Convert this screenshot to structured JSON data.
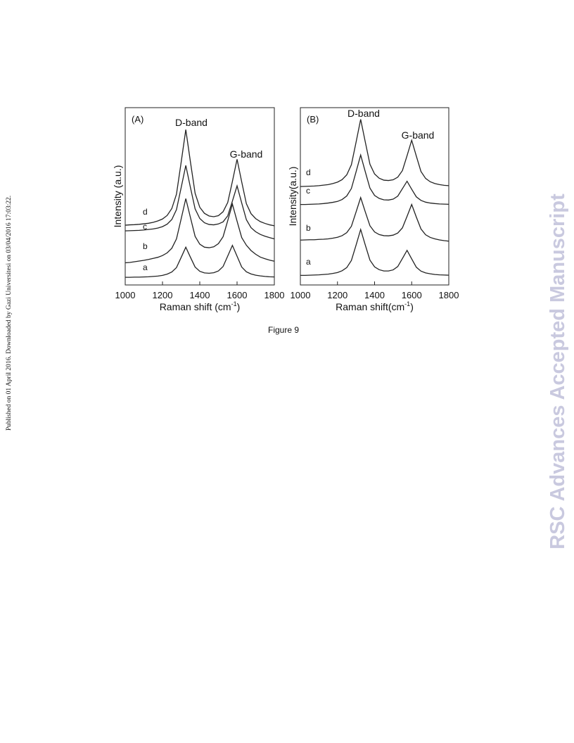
{
  "side_note": "Published on 01 April 2016. Downloaded by Gazi Universitesi on 03/04/2016 17:03:22.",
  "watermark": "RSC Advances Accepted Manuscript",
  "figure_caption": "Figure 9",
  "chart_data": [
    {
      "type": "line",
      "panel_label": "(A)",
      "annotations": [
        "D-band",
        "G-band"
      ],
      "y_label": "Intensity (a.u.)",
      "x_label": "Raman shift (cm",
      "x_label_sup": "-1",
      "x_label_end": ")",
      "xlim": [
        1000,
        1800
      ],
      "xticks": [
        1000,
        1200,
        1400,
        1600,
        1800
      ],
      "ylim": [
        0,
        100
      ],
      "x": [
        1000,
        1025,
        1050,
        1075,
        1100,
        1125,
        1150,
        1175,
        1200,
        1225,
        1250,
        1275,
        1300,
        1325,
        1350,
        1375,
        1400,
        1425,
        1450,
        1475,
        1500,
        1525,
        1550,
        1575,
        1600,
        1625,
        1650,
        1675,
        1700,
        1725,
        1750,
        1775,
        1800
      ],
      "series": [
        {
          "name": "a",
          "color": "#222222",
          "values": [
            4.3,
            4.3,
            4.4,
            4.4,
            4.5,
            4.6,
            4.8,
            5.0,
            5.4,
            6.1,
            7.3,
            9.8,
            15.5,
            21.3,
            15.6,
            10.1,
            7.7,
            6.8,
            6.6,
            6.9,
            7.9,
            10.4,
            16.3,
            22.3,
            16.2,
            10.1,
            7.4,
            6.2,
            5.5,
            5.1,
            4.8,
            4.6,
            4.5
          ]
        },
        {
          "name": "b",
          "color": "#222222",
          "values": [
            12.5,
            12.7,
            13.1,
            13.5,
            13.9,
            14.4,
            15.0,
            15.6,
            16.6,
            18.1,
            20.7,
            26.0,
            37.2,
            48.7,
            38.0,
            27.4,
            23.0,
            21.3,
            21.0,
            21.5,
            23.3,
            27.2,
            36.3,
            45.6,
            36.0,
            26.7,
            22.4,
            19.4,
            17.3,
            15.7,
            14.8,
            14.0,
            13.4
          ]
        },
        {
          "name": "c",
          "color": "#222222",
          "values": [
            30.5,
            30.6,
            30.7,
            30.8,
            31.0,
            31.3,
            31.6,
            32.1,
            32.9,
            34.3,
            36.9,
            42.5,
            54.8,
            67.4,
            54.9,
            42.9,
            37.5,
            35.1,
            34.1,
            33.9,
            34.4,
            35.6,
            39.0,
            47.3,
            55.9,
            46.2,
            36.8,
            32.3,
            30.0,
            28.5,
            27.5,
            26.7,
            26.0
          ]
        },
        {
          "name": "d",
          "color": "#222222",
          "values": [
            33.7,
            33.9,
            34.0,
            34.2,
            34.5,
            34.8,
            35.3,
            36.1,
            37.2,
            39.2,
            43.1,
            51.2,
            69.1,
            87.6,
            69.3,
            51.7,
            43.8,
            40.4,
            38.9,
            38.5,
            39.1,
            41.3,
            46.5,
            58.4,
            70.9,
            58.1,
            45.8,
            40.2,
            37.4,
            35.7,
            34.7,
            33.9,
            33.4
          ]
        }
      ]
    },
    {
      "type": "line",
      "panel_label": "(B)",
      "annotations": [
        "D-band",
        "G-band"
      ],
      "y_label": "Intensity(a.u.)",
      "x_label": "Raman shift(cm",
      "x_label_sup": "-1",
      "x_label_end": ")",
      "xlim": [
        1000,
        1800
      ],
      "xticks": [
        1000,
        1200,
        1400,
        1600,
        1800
      ],
      "ylim": [
        0,
        100
      ],
      "x": [
        1000,
        1025,
        1050,
        1075,
        1100,
        1125,
        1150,
        1175,
        1200,
        1225,
        1250,
        1275,
        1300,
        1325,
        1350,
        1375,
        1400,
        1425,
        1450,
        1475,
        1500,
        1525,
        1550,
        1575,
        1600,
        1625,
        1650,
        1675,
        1700,
        1725,
        1750,
        1775,
        1800
      ],
      "series": [
        {
          "name": "a",
          "color": "#222222",
          "values": [
            5.4,
            5.4,
            5.5,
            5.6,
            5.7,
            5.9,
            6.1,
            6.5,
            7.0,
            8.0,
            9.8,
            13.8,
            22.4,
            31.3,
            22.5,
            14.0,
            10.2,
            8.6,
            7.9,
            7.9,
            8.5,
            10.4,
            14.9,
            19.5,
            14.7,
            10.0,
            7.8,
            6.8,
            6.3,
            5.9,
            5.7,
            5.6,
            5.5
          ]
        },
        {
          "name": "b",
          "color": "#222222",
          "values": [
            25.3,
            25.4,
            25.5,
            25.5,
            25.7,
            25.8,
            26.0,
            26.4,
            26.9,
            27.8,
            29.5,
            33.1,
            41.1,
            49.3,
            41.2,
            33.4,
            29.9,
            28.4,
            27.8,
            27.7,
            28.1,
            29.3,
            32.2,
            38.7,
            45.4,
            38.3,
            31.6,
            28.3,
            26.8,
            26.0,
            25.4,
            25.0,
            24.7
          ]
        },
        {
          "name": "c",
          "color": "#222222",
          "values": [
            45.4,
            45.4,
            45.5,
            45.6,
            45.7,
            45.9,
            46.2,
            46.6,
            47.1,
            48.2,
            50.2,
            54.4,
            63.7,
            73.3,
            63.8,
            54.6,
            50.5,
            48.8,
            48.0,
            47.9,
            48.4,
            50.1,
            54.3,
            58.5,
            54.0,
            49.7,
            47.7,
            46.7,
            46.2,
            45.9,
            45.7,
            45.6,
            45.5
          ]
        },
        {
          "name": "d",
          "color": "#222222",
          "values": [
            55.5,
            55.6,
            55.7,
            55.8,
            56.0,
            56.3,
            56.6,
            57.2,
            58.0,
            59.4,
            62.1,
            67.8,
            80.4,
            93.4,
            80.6,
            68.1,
            62.6,
            60.2,
            59.1,
            58.9,
            59.3,
            60.8,
            64.5,
            72.9,
            81.6,
            72.7,
            64.0,
            60.1,
            58.2,
            57.2,
            56.6,
            56.2,
            56.0
          ]
        }
      ]
    }
  ]
}
